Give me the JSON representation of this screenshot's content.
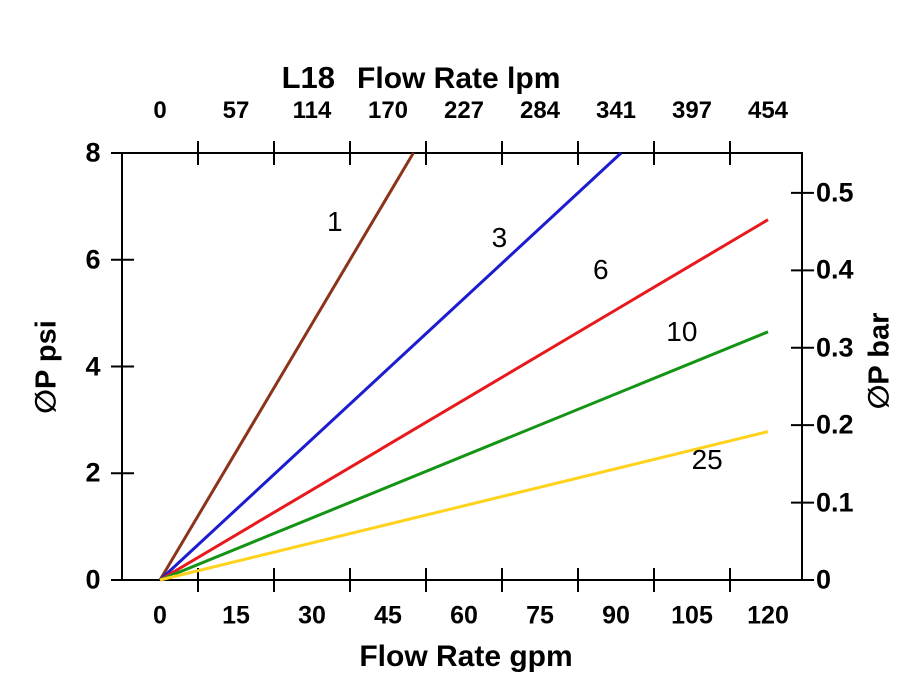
{
  "chart_data": {
    "type": "line",
    "model": "L18",
    "grid": "off",
    "legend": "labels placed along lines",
    "x_top": {
      "label": "Flow Rate lpm",
      "ticks": [
        "0",
        "57",
        "114",
        "170",
        "227",
        "284",
        "341",
        "397",
        "454"
      ]
    },
    "x_bottom": {
      "label": "Flow Rate gpm",
      "ticks": [
        0,
        15,
        30,
        45,
        60,
        75,
        90,
        105,
        120
      ],
      "range_gpm": [
        0,
        126.8
      ]
    },
    "y_left": {
      "label": "∅P psi",
      "ticks": [
        8,
        6,
        4,
        2,
        0
      ],
      "range_psi": [
        0,
        8
      ]
    },
    "y_right": {
      "label": "∅P bar",
      "ticks": [
        0.5,
        0.4,
        0.3,
        0.2,
        0.1,
        0
      ]
    },
    "series": [
      {
        "name": "1",
        "color": "#8C3319",
        "points_gpm_psi": [
          [
            0,
            0
          ],
          [
            50,
            8
          ]
        ],
        "label_at": [
          34.5,
          6.7
        ]
      },
      {
        "name": "3",
        "color": "#1C1CD0",
        "points_gpm_psi": [
          [
            0,
            0
          ],
          [
            91,
            8
          ]
        ],
        "label_at": [
          67,
          6.4
        ]
      },
      {
        "name": "6",
        "color": "#E8191C",
        "points_gpm_psi": [
          [
            0,
            0
          ],
          [
            120,
            6.75
          ]
        ],
        "label_at": [
          87,
          5.8
        ]
      },
      {
        "name": "10",
        "color": "#149414",
        "points_gpm_psi": [
          [
            0,
            0
          ],
          [
            120,
            4.65
          ]
        ],
        "label_at": [
          103,
          4.65
        ]
      },
      {
        "name": "25",
        "color": "#FFD21E",
        "points_gpm_psi": [
          [
            0,
            0
          ],
          [
            120,
            2.78
          ]
        ],
        "label_at": [
          108,
          2.25
        ]
      }
    ]
  }
}
